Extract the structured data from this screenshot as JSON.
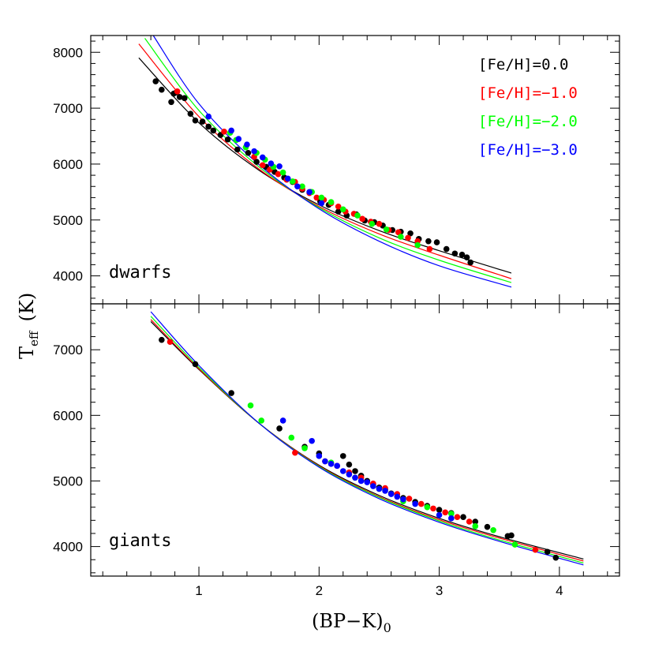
{
  "chart_data": {
    "type": "scatter",
    "xlabel": "(BP−K)",
    "xlabel_sub": "0",
    "ylabel": "T",
    "ylabel_sub": "eff",
    "ylabel_unit": "(K)",
    "xlim": [
      0.1,
      4.5
    ],
    "x_ticks": [
      1,
      2,
      3,
      4
    ],
    "x_tick_labels": [
      "1",
      "2",
      "3",
      "4"
    ],
    "legend": {
      "placement": "top-right",
      "entries": [
        {
          "label": "[Fe/H]=0.0",
          "color": "#000000"
        },
        {
          "label": "[Fe/H]=−1.0",
          "color": "#ff0000"
        },
        {
          "label": "[Fe/H]=−2.0",
          "color": "#00ff00"
        },
        {
          "label": "[Fe/H]=−3.0",
          "color": "#0000ff"
        }
      ]
    },
    "panels": [
      {
        "label": "dwarfs",
        "ylim": [
          3500,
          8300
        ],
        "y_ticks": [
          4000,
          5000,
          6000,
          7000,
          8000
        ],
        "y_tick_labels": [
          "4000",
          "5000",
          "6000",
          "7000",
          "8000"
        ],
        "curves": [
          {
            "color": "#000000",
            "x": [
              0.5,
              1.0,
              1.5,
              2.0,
              2.5,
              3.0,
              3.6
            ],
            "y": [
              7900,
              6740,
              5890,
              5270,
              4810,
              4450,
              4050
            ]
          },
          {
            "color": "#ff0000",
            "x": [
              0.5,
              1.0,
              1.5,
              2.0,
              2.5,
              3.0,
              3.6
            ],
            "y": [
              8150,
              6850,
              5910,
              5240,
              4750,
              4370,
              3950
            ]
          },
          {
            "color": "#00ff00",
            "x": [
              0.55,
              1.0,
              1.5,
              2.0,
              2.5,
              3.0,
              3.6
            ],
            "y": [
              8250,
              6960,
              5950,
              5220,
              4680,
              4280,
              3880
            ]
          },
          {
            "color": "#0000ff",
            "x": [
              0.62,
              1.0,
              1.5,
              2.0,
              2.5,
              3.0,
              3.6
            ],
            "y": [
              8300,
              7080,
              5990,
              5200,
              4620,
              4180,
              3800
            ]
          }
        ],
        "points": [
          {
            "color": "#000000",
            "x": [
              0.64,
              0.69,
              0.77,
              0.79,
              0.81,
              0.84,
              0.88,
              0.93,
              0.97,
              1.03,
              1.08,
              1.12,
              1.18,
              1.24,
              1.32,
              1.41,
              1.48,
              1.56,
              1.63,
              1.71,
              1.78,
              1.86,
              1.93,
              2.01,
              2.08,
              2.16,
              2.23,
              2.31,
              2.38,
              2.46,
              2.53,
              2.61,
              2.68,
              2.76,
              2.83,
              2.91,
              2.98,
              3.06,
              3.13,
              3.19,
              3.23,
              3.26
            ],
            "y": [
              7480,
              7330,
              7110,
              7260,
              7280,
              7200,
              7180,
              6900,
              6780,
              6760,
              6670,
              6600,
              6520,
              6440,
              6260,
              6200,
              6040,
              5950,
              5860,
              5760,
              5680,
              5540,
              5500,
              5330,
              5270,
              5150,
              5080,
              5100,
              4990,
              4960,
              4900,
              4820,
              4790,
              4760,
              4660,
              4620,
              4600,
              4480,
              4400,
              4380,
              4330,
              4240
            ]
          },
          {
            "color": "#ff0000",
            "x": [
              0.82,
              1.21,
              1.46,
              1.53,
              1.59,
              1.66,
              1.73,
              1.8,
              1.86,
              1.92,
              1.98,
              2.04,
              2.1,
              2.16,
              2.22,
              2.29,
              2.36,
              2.43,
              2.5,
              2.58,
              2.66,
              2.74,
              2.82,
              2.92
            ],
            "y": [
              7300,
              6580,
              6130,
              5980,
              5900,
              5820,
              5720,
              5680,
              5560,
              5480,
              5400,
              5360,
              5300,
              5240,
              5150,
              5110,
              5020,
              4970,
              4930,
              4820,
              4780,
              4680,
              4620,
              4480
            ]
          },
          {
            "color": "#00ff00",
            "x": [
              1.26,
              1.31,
              1.39,
              1.48,
              1.55,
              1.62,
              1.7,
              1.78,
              1.86,
              1.94,
              2.02,
              2.1,
              2.2,
              2.32,
              2.44,
              2.56,
              2.68,
              2.82
            ],
            "y": [
              6560,
              6430,
              6300,
              6200,
              6080,
              5950,
              5850,
              5690,
              5600,
              5500,
              5400,
              5320,
              5190,
              5080,
              4930,
              4830,
              4700,
              4550
            ]
          },
          {
            "color": "#0000ff",
            "x": [
              1.08,
              1.27,
              1.33,
              1.4,
              1.46,
              1.53,
              1.6,
              1.67,
              1.74,
              1.82,
              1.92,
              2.02
            ],
            "y": [
              6850,
              6600,
              6450,
              6350,
              6230,
              6120,
              6010,
              5960,
              5740,
              5600,
              5500,
              5300
            ]
          }
        ]
      },
      {
        "label": "giants",
        "ylim": [
          3550,
          7700
        ],
        "y_ticks": [
          4000,
          5000,
          6000,
          7000
        ],
        "y_tick_labels": [
          "4000",
          "5000",
          "6000",
          "7000"
        ],
        "curves": [
          {
            "color": "#000000",
            "x": [
              0.6,
              1.0,
              1.5,
              2.0,
              2.5,
              3.0,
              3.5,
              4.2
            ],
            "y": [
              7430,
              6700,
              5880,
              5240,
              4780,
              4430,
              4150,
              3810
            ]
          },
          {
            "color": "#ff0000",
            "x": [
              0.6,
              1.0,
              1.5,
              2.0,
              2.5,
              3.0,
              3.5,
              4.2
            ],
            "y": [
              7460,
              6710,
              5880,
              5230,
              4760,
              4410,
              4130,
              3780
            ]
          },
          {
            "color": "#00ff00",
            "x": [
              0.6,
              1.0,
              1.5,
              2.0,
              2.5,
              3.0,
              3.5,
              4.2
            ],
            "y": [
              7510,
              6730,
              5880,
              5220,
              4750,
              4390,
              4100,
              3750
            ]
          },
          {
            "color": "#0000ff",
            "x": [
              0.6,
              1.0,
              1.5,
              2.0,
              2.5,
              3.0,
              3.5,
              4.2
            ],
            "y": [
              7580,
              6760,
              5880,
              5210,
              4730,
              4370,
              4080,
              3720
            ]
          }
        ],
        "points": [
          {
            "color": "#000000",
            "x": [
              0.69,
              0.97,
              1.27,
              1.67,
              1.88,
              2.0,
              2.2,
              2.25,
              2.3,
              2.35,
              2.4,
              2.45,
              2.5,
              2.55,
              2.6,
              2.7,
              2.8,
              2.9,
              3.0,
              3.1,
              3.2,
              3.3,
              3.4,
              3.57,
              3.6,
              3.9,
              3.97
            ],
            "y": [
              7150,
              6780,
              6340,
              5800,
              5520,
              5420,
              5380,
              5250,
              5150,
              5080,
              5000,
              4950,
              4900,
              4870,
              4810,
              4740,
              4680,
              4620,
              4560,
              4510,
              4450,
              4380,
              4300,
              4160,
              4170,
              3920,
              3830
            ]
          },
          {
            "color": "#ff0000",
            "x": [
              0.76,
              1.8,
              2.05,
              2.15,
              2.25,
              2.35,
              2.45,
              2.55,
              2.65,
              2.75,
              2.85,
              2.95,
              3.05,
              3.15,
              3.25,
              3.8
            ],
            "y": [
              7120,
              5430,
              5300,
              5230,
              5130,
              5050,
              4960,
              4890,
              4800,
              4730,
              4650,
              4580,
              4520,
              4450,
              4380,
              3950
            ]
          },
          {
            "color": "#00ff00",
            "x": [
              1.43,
              1.52,
              1.77,
              1.88,
              2.1,
              2.3,
              2.5,
              2.7,
              2.9,
              3.1,
              3.3,
              3.45,
              3.63
            ],
            "y": [
              6150,
              5920,
              5660,
              5500,
              5280,
              5050,
              4880,
              4690,
              4600,
              4500,
              4310,
              4250,
              4030
            ]
          },
          {
            "color": "#0000ff",
            "x": [
              1.7,
              1.94,
              2.0,
              2.05,
              2.1,
              2.15,
              2.2,
              2.25,
              2.3,
              2.35,
              2.4,
              2.45,
              2.5,
              2.55,
              2.6,
              2.65,
              2.7,
              2.8,
              3.0,
              3.1
            ],
            "y": [
              5920,
              5610,
              5380,
              5300,
              5260,
              5230,
              5150,
              5100,
              5050,
              5000,
              4980,
              4920,
              4880,
              4850,
              4800,
              4760,
              4720,
              4650,
              4480,
              4430
            ]
          }
        ]
      }
    ]
  }
}
